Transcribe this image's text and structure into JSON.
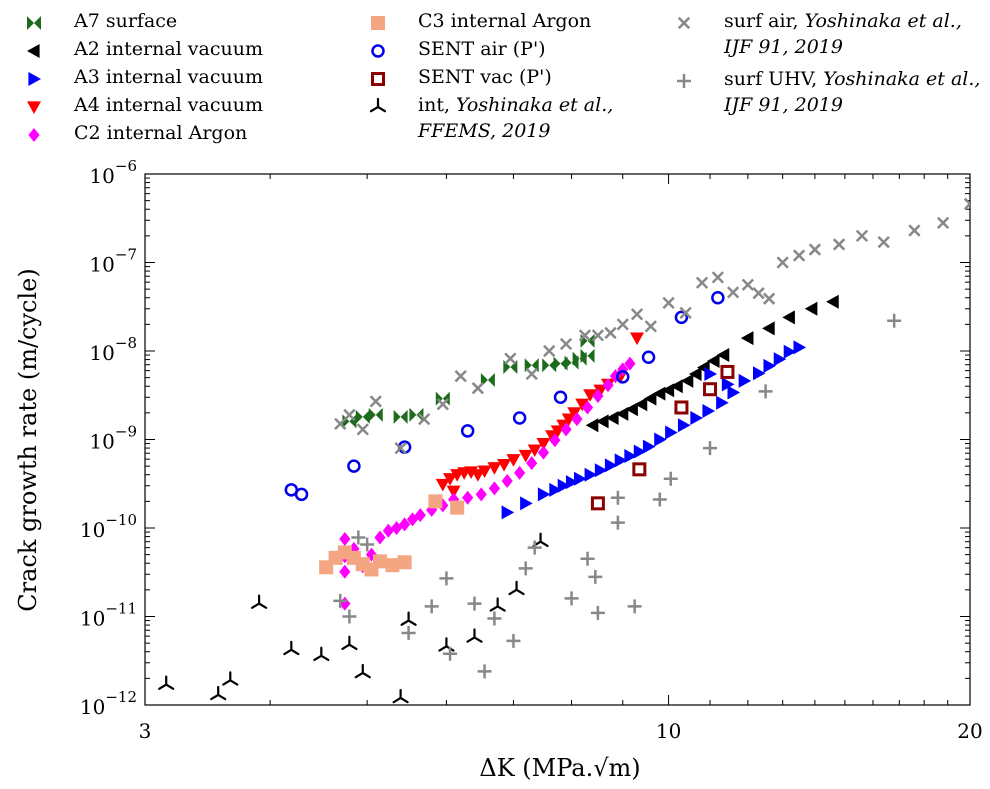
{
  "chart_data": {
    "type": "scatter",
    "title": "",
    "xlabel": "ΔK (MPa.√m)",
    "ylabel": "Crack growth rate (m/cycle)",
    "x_scale": "log",
    "y_scale": "log",
    "xlim": [
      3,
      20
    ],
    "ylim": [
      1e-12,
      1e-06
    ],
    "x_ticks": [
      {
        "value": 3,
        "label": "3"
      },
      {
        "value": 10,
        "label": "10"
      },
      {
        "value": 20,
        "label": "20"
      }
    ],
    "y_ticks": [
      {
        "value": 1e-12,
        "base": "10",
        "exp": "−12"
      },
      {
        "value": 1e-11,
        "base": "10",
        "exp": "−11"
      },
      {
        "value": 1e-10,
        "base": "10",
        "exp": "−10"
      },
      {
        "value": 1e-09,
        "base": "10",
        "exp": "−9"
      },
      {
        "value": 1e-08,
        "base": "10",
        "exp": "−8"
      },
      {
        "value": 1e-07,
        "base": "10",
        "exp": "−7"
      },
      {
        "value": 1e-06,
        "base": "10",
        "exp": "−6"
      }
    ],
    "grid": false,
    "legend_position": "top, three columns above the plot",
    "series": [
      {
        "name": "A7 surface",
        "marker": "bowtie",
        "color": "#1e6b1e",
        "points": [
          [
            4.8,
            1.6e-09
          ],
          [
            4.95,
            1.8e-09
          ],
          [
            5.1,
            1.9e-09
          ],
          [
            5.4,
            1.8e-09
          ],
          [
            5.6,
            1.9e-09
          ],
          [
            5.95,
            2.9e-09
          ],
          [
            6.6,
            4.7e-09
          ],
          [
            6.95,
            6.6e-09
          ],
          [
            7.3,
            6.9e-09
          ],
          [
            7.6,
            6.9e-09
          ],
          [
            7.8,
            7.2e-09
          ],
          [
            8.0,
            7.4e-09
          ],
          [
            8.15,
            8.2e-09
          ],
          [
            8.3,
            8.8e-09
          ],
          [
            8.3,
            1.3e-08
          ]
        ]
      },
      {
        "name": "A2 internal vacuum",
        "marker": "tri-left",
        "color": "#000000",
        "points": [
          [
            8.4,
            1.45e-09
          ],
          [
            8.6,
            1.6e-09
          ],
          [
            8.8,
            1.75e-09
          ],
          [
            9.0,
            1.95e-09
          ],
          [
            9.2,
            2.2e-09
          ],
          [
            9.4,
            2.5e-09
          ],
          [
            9.6,
            2.9e-09
          ],
          [
            9.8,
            3.3e-09
          ],
          [
            10.0,
            3.6e-09
          ],
          [
            10.2,
            4e-09
          ],
          [
            10.45,
            4.6e-09
          ],
          [
            10.65,
            5.5e-09
          ],
          [
            10.85,
            6.5e-09
          ],
          [
            11.1,
            7.7e-09
          ],
          [
            11.35,
            9e-09
          ],
          [
            12.0,
            1.4e-08
          ],
          [
            12.6,
            1.8e-08
          ],
          [
            13.2,
            2.4e-08
          ],
          [
            13.9,
            3e-08
          ],
          [
            14.6,
            3.6e-08
          ]
        ]
      },
      {
        "name": "A3 internal vacuum",
        "marker": "tri-right",
        "color": "#0000ff",
        "points": [
          [
            6.9,
            1.5e-10
          ],
          [
            7.2,
            1.9e-10
          ],
          [
            7.5,
            2.4e-10
          ],
          [
            7.7,
            2.7e-10
          ],
          [
            7.85,
            3e-10
          ],
          [
            8.0,
            3.3e-10
          ],
          [
            8.15,
            3.6e-10
          ],
          [
            8.35,
            4e-10
          ],
          [
            8.55,
            4.5e-10
          ],
          [
            8.75,
            5.1e-10
          ],
          [
            8.95,
            5.8e-10
          ],
          [
            9.15,
            6.5e-10
          ],
          [
            9.35,
            7.3e-10
          ],
          [
            9.55,
            8.3e-10
          ],
          [
            9.8,
            1e-09
          ],
          [
            10.05,
            1.2e-09
          ],
          [
            10.35,
            1.45e-09
          ],
          [
            10.65,
            1.75e-09
          ],
          [
            10.95,
            2.1e-09
          ],
          [
            11.3,
            2.6e-09
          ],
          [
            11.6,
            3.4e-09
          ],
          [
            11.9,
            4.6e-09
          ],
          [
            12.3,
            5.6e-09
          ],
          [
            12.6,
            6.8e-09
          ],
          [
            12.9,
            8.1e-09
          ],
          [
            13.2,
            9.8e-09
          ],
          [
            13.5,
            1.1e-08
          ],
          [
            11.0,
            5.5e-09
          ],
          [
            11.45,
            4.2e-09
          ]
        ]
      },
      {
        "name": "A4 internal vacuum",
        "marker": "tri-down",
        "color": "#ff0000",
        "points": [
          [
            5.95,
            3.1e-10
          ],
          [
            6.05,
            3.6e-10
          ],
          [
            6.15,
            4e-10
          ],
          [
            6.25,
            4.2e-10
          ],
          [
            6.35,
            4.3e-10
          ],
          [
            6.45,
            4e-10
          ],
          [
            6.55,
            4.4e-10
          ],
          [
            6.7,
            4.8e-10
          ],
          [
            6.85,
            5.2e-10
          ],
          [
            7.0,
            5.9e-10
          ],
          [
            7.2,
            6.6e-10
          ],
          [
            7.35,
            7.6e-10
          ],
          [
            7.5,
            9e-10
          ],
          [
            7.65,
            1.1e-09
          ],
          [
            7.75,
            1.25e-09
          ],
          [
            7.85,
            1.45e-09
          ],
          [
            7.95,
            1.7e-09
          ],
          [
            8.05,
            2e-09
          ],
          [
            8.2,
            2.5e-09
          ],
          [
            8.35,
            3.2e-09
          ],
          [
            8.55,
            3.6e-09
          ],
          [
            8.7,
            4.2e-09
          ],
          [
            8.95,
            5.1e-09
          ],
          [
            6.1,
            2.6e-10
          ],
          [
            9.3,
            1.4e-08
          ]
        ]
      },
      {
        "name": "C2 internal Argon",
        "marker": "diamond",
        "color": "#ff00ff",
        "points": [
          [
            4.75,
            1.4e-11
          ],
          [
            4.75,
            3.2e-11
          ],
          [
            4.75,
            4.8e-11
          ],
          [
            4.75,
            7.5e-11
          ],
          [
            4.85,
            5.8e-11
          ],
          [
            4.95,
            3.7e-11
          ],
          [
            5.05,
            5e-11
          ],
          [
            5.15,
            7.8e-11
          ],
          [
            5.25,
            9.3e-11
          ],
          [
            5.35,
            1e-10
          ],
          [
            5.45,
            1.1e-10
          ],
          [
            5.55,
            1.25e-10
          ],
          [
            5.65,
            1.4e-10
          ],
          [
            5.8,
            1.6e-10
          ],
          [
            5.95,
            1.8e-10
          ],
          [
            6.1,
            2.1e-10
          ],
          [
            6.3,
            2.2e-10
          ],
          [
            6.5,
            2.4e-10
          ],
          [
            6.7,
            2.8e-10
          ],
          [
            6.9,
            3.4e-10
          ],
          [
            7.1,
            4.2e-10
          ],
          [
            7.3,
            5.4e-10
          ],
          [
            7.5,
            7.1e-10
          ],
          [
            7.7,
            9.8e-10
          ],
          [
            7.9,
            1.3e-09
          ],
          [
            8.1,
            1.7e-09
          ],
          [
            8.3,
            2.3e-09
          ],
          [
            8.5,
            3.1e-09
          ],
          [
            8.7,
            4.1e-09
          ],
          [
            8.85,
            5.2e-09
          ],
          [
            9.0,
            6.2e-09
          ],
          [
            9.15,
            7.2e-09
          ]
        ]
      },
      {
        "name": "C3 internal Argon",
        "marker": "square",
        "color": "#f4a582",
        "points": [
          [
            4.55,
            3.6e-11
          ],
          [
            4.65,
            4.6e-11
          ],
          [
            4.75,
            5.3e-11
          ],
          [
            4.85,
            4.6e-11
          ],
          [
            4.95,
            3.9e-11
          ],
          [
            5.05,
            3.4e-11
          ],
          [
            5.15,
            4.2e-11
          ],
          [
            5.3,
            3.8e-11
          ],
          [
            5.45,
            4.1e-11
          ],
          [
            5.85,
            2e-10
          ],
          [
            6.15,
            1.7e-10
          ]
        ]
      },
      {
        "name": "SENT air (P')",
        "marker": "circle",
        "color": "#0000ee",
        "points": [
          [
            4.2,
            2.7e-10
          ],
          [
            4.3,
            2.4e-10
          ],
          [
            4.85,
            5e-10
          ],
          [
            5.45,
            8.2e-10
          ],
          [
            6.3,
            1.25e-09
          ],
          [
            7.1,
            1.75e-09
          ],
          [
            7.8,
            3e-09
          ],
          [
            9.0,
            5.1e-09
          ],
          [
            9.55,
            8.5e-09
          ],
          [
            10.3,
            2.4e-08
          ],
          [
            11.2,
            4e-08
          ]
        ]
      },
      {
        "name": "SENT vac (P')",
        "marker": "square-open",
        "color": "#8b0000",
        "points": [
          [
            8.5,
            1.9e-10
          ],
          [
            9.35,
            4.6e-10
          ],
          [
            10.3,
            2.3e-09
          ],
          [
            11.0,
            3.7e-09
          ],
          [
            11.45,
            5.8e-09
          ]
        ]
      },
      {
        "name_lines": [
          "int, ",
          "Yoshinaka et al.,",
          "FFEMS, 2019"
        ],
        "name": "int, Yoshinaka et al., FFEMS, 2019",
        "marker": "tri-up",
        "color": "#000000",
        "points": [
          [
            3.15,
            1.7e-12
          ],
          [
            3.55,
            1.3e-12
          ],
          [
            3.65,
            1.9e-12
          ],
          [
            3.9,
            1.4e-11
          ],
          [
            4.2,
            4.2e-12
          ],
          [
            4.5,
            3.6e-12
          ],
          [
            4.8,
            4.8e-12
          ],
          [
            4.95,
            2.3e-12
          ],
          [
            5.4,
            1.2e-12
          ],
          [
            5.5,
            9e-12
          ],
          [
            6.0,
            4.6e-12
          ],
          [
            6.4,
            5.8e-12
          ],
          [
            6.75,
            1.3e-11
          ],
          [
            7.05,
            2e-11
          ],
          [
            7.45,
            7e-11
          ]
        ]
      },
      {
        "name_lines": [
          "surf air, ",
          "Yoshinaka et al.,",
          "IJF 91, 2019"
        ],
        "name": "surf air, Yoshinaka et al., IJF 91, 2019",
        "marker": "x",
        "color": "#888888",
        "points": [
          [
            4.7,
            1.5e-09
          ],
          [
            4.8,
            1.9e-09
          ],
          [
            4.95,
            1.3e-09
          ],
          [
            5.1,
            2.7e-09
          ],
          [
            5.4,
            8e-10
          ],
          [
            5.7,
            1.7e-09
          ],
          [
            5.95,
            2.5e-09
          ],
          [
            6.2,
            5.2e-09
          ],
          [
            6.45,
            3.8e-09
          ],
          [
            6.95,
            8.2e-09
          ],
          [
            7.3,
            5.5e-09
          ],
          [
            7.6,
            1e-08
          ],
          [
            7.9,
            1.2e-08
          ],
          [
            8.25,
            1.5e-08
          ],
          [
            8.5,
            1.5e-08
          ],
          [
            8.75,
            1.6e-08
          ],
          [
            9.0,
            2e-08
          ],
          [
            9.3,
            2.6e-08
          ],
          [
            9.6,
            1.9e-08
          ],
          [
            10.0,
            3.5e-08
          ],
          [
            10.4,
            2.7e-08
          ],
          [
            10.8,
            5.9e-08
          ],
          [
            11.2,
            6.8e-08
          ],
          [
            11.6,
            4.6e-08
          ],
          [
            12.0,
            5.6e-08
          ],
          [
            12.3,
            4.5e-08
          ],
          [
            12.6,
            3.9e-08
          ],
          [
            13.0,
            1e-07
          ],
          [
            13.5,
            1.2e-07
          ],
          [
            14.0,
            1.4e-07
          ],
          [
            14.8,
            1.6e-07
          ],
          [
            15.6,
            2e-07
          ],
          [
            16.4,
            1.7e-07
          ],
          [
            17.6,
            2.3e-07
          ],
          [
            18.8,
            2.8e-07
          ],
          [
            20.0,
            4.6e-07
          ]
        ]
      },
      {
        "name_lines": [
          "surf UHV, ",
          "Yoshinaka et al.,",
          "IJF 91, 2019"
        ],
        "name": "surf UHV, Yoshinaka et al., IJF 91, 2019",
        "marker": "plus",
        "color": "#888888",
        "points": [
          [
            4.7,
            1.5e-11
          ],
          [
            4.8,
            1e-11
          ],
          [
            4.9,
            7.8e-11
          ],
          [
            5.0,
            6.5e-11
          ],
          [
            5.5,
            6.5e-12
          ],
          [
            5.8,
            1.3e-11
          ],
          [
            6.0,
            2.7e-11
          ],
          [
            6.05,
            3.8e-12
          ],
          [
            6.4,
            1.4e-11
          ],
          [
            6.55,
            2.4e-12
          ],
          [
            6.7,
            9.5e-12
          ],
          [
            7.0,
            5.3e-12
          ],
          [
            7.2,
            3.5e-11
          ],
          [
            7.35,
            6e-11
          ],
          [
            8.0,
            1.6e-11
          ],
          [
            8.3,
            4.5e-11
          ],
          [
            8.45,
            2.8e-11
          ],
          [
            8.5,
            1.1e-11
          ],
          [
            8.9,
            2.2e-10
          ],
          [
            8.9,
            1.15e-10
          ],
          [
            9.25,
            1.3e-11
          ],
          [
            9.8,
            2.1e-10
          ],
          [
            10.05,
            3.6e-10
          ],
          [
            11.0,
            8e-10
          ],
          [
            12.5,
            3.5e-09
          ],
          [
            16.8,
            2.2e-08
          ]
        ]
      }
    ]
  }
}
